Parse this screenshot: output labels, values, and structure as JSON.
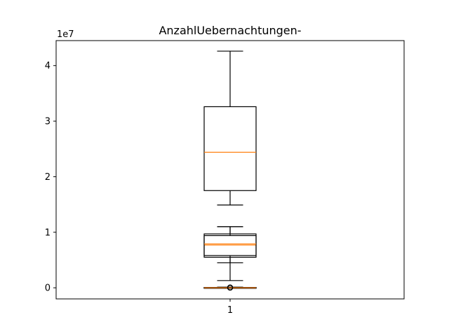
{
  "chart_data": {
    "type": "box",
    "title": "AnzahlUebernachtungen-",
    "xlabel": "",
    "ylabel": "",
    "offset_text": "1e7",
    "ylim": [
      -2000000,
      44500000
    ],
    "yticks": [
      0,
      10000000,
      20000000,
      30000000,
      40000000
    ],
    "ytick_labels": [
      "0",
      "1",
      "2",
      "3",
      "4"
    ],
    "xtick_labels": [
      "1"
    ],
    "grid": false,
    "boxes": [
      {
        "whislo": 14900000,
        "q1": 17500000,
        "med": 24400000,
        "q3": 32600000,
        "whishi": 42600000,
        "fliers": []
      },
      {
        "whislo": 4500000,
        "q1": 5800000,
        "med": 7700000,
        "q3": 9400000,
        "whishi": 11000000,
        "fliers": []
      },
      {
        "whislo": 1300000,
        "q1": 5500000,
        "med": 7900000,
        "q3": 9700000,
        "whishi": 11000000,
        "fliers": []
      },
      {
        "whislo": 0,
        "q1": 0,
        "med": 0,
        "q3": 60000,
        "whishi": 120000,
        "fliers": [
          10000,
          30000,
          60000
        ]
      },
      {
        "whislo": 0,
        "q1": 0,
        "med": 0,
        "q3": 40000,
        "whishi": 80000,
        "fliers": [
          15000,
          40000
        ]
      }
    ],
    "colors": {
      "box": "#000000",
      "median": "#ff7f0e",
      "flier": "#000000"
    }
  }
}
